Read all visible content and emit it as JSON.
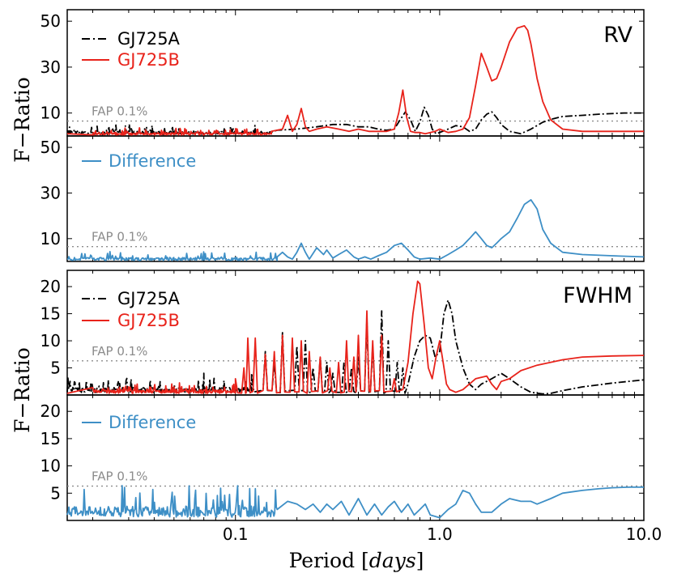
{
  "chart_data": [
    {
      "type": "line",
      "name": "rv-top",
      "tag": "RV",
      "ylim": [
        0,
        55
      ],
      "yticks": [
        10,
        30,
        50
      ],
      "fap": {
        "label": "FAP 0.1%",
        "value": 6.5
      },
      "series": [
        {
          "name": "GJ725A",
          "color": "#000000",
          "dash": "dashdot",
          "noise": {
            "from": 0.015,
            "to": 0.15,
            "amp": 3.5,
            "base": 0.6
          },
          "x": [
            0.015,
            0.03,
            0.05,
            0.08,
            0.12,
            0.16,
            0.2,
            0.25,
            0.3,
            0.35,
            0.4,
            0.45,
            0.5,
            0.55,
            0.6,
            0.64,
            0.68,
            0.72,
            0.76,
            0.8,
            0.84,
            0.88,
            0.92,
            0.96,
            1.0,
            1.1,
            1.2,
            1.3,
            1.4,
            1.5,
            1.6,
            1.7,
            1.8,
            1.9,
            2.0,
            2.2,
            2.5,
            2.8,
            3.2,
            3.6,
            4.0,
            5.0,
            6.0,
            8.0,
            10.0
          ],
          "y": [
            2,
            2,
            2,
            2,
            2,
            2.5,
            3,
            4,
            5,
            5,
            4,
            4,
            3,
            2.5,
            3,
            7,
            10.5,
            7,
            2,
            6,
            12.5,
            9,
            3,
            1,
            1.5,
            3,
            4.5,
            4,
            2,
            3,
            7,
            9.5,
            10.5,
            8,
            5,
            2,
            1,
            3,
            6,
            7.5,
            8.5,
            9,
            9.5,
            10,
            10
          ]
        },
        {
          "name": "GJ725B",
          "color": "#e8231b",
          "dash": "solid",
          "noise": {
            "from": 0.02,
            "to": 0.15,
            "amp": 2.5,
            "base": 0.4
          },
          "x": [
            0.015,
            0.05,
            0.1,
            0.15,
            0.17,
            0.18,
            0.19,
            0.2,
            0.21,
            0.22,
            0.23,
            0.25,
            0.28,
            0.32,
            0.36,
            0.4,
            0.45,
            0.5,
            0.55,
            0.6,
            0.63,
            0.66,
            0.69,
            0.72,
            0.76,
            0.8,
            0.85,
            0.9,
            0.95,
            1.0,
            1.1,
            1.2,
            1.3,
            1.4,
            1.5,
            1.6,
            1.7,
            1.8,
            1.9,
            2.0,
            2.2,
            2.4,
            2.6,
            2.7,
            2.8,
            3.0,
            3.2,
            3.5,
            4.0,
            5.0,
            7.0,
            10.0
          ],
          "y": [
            1,
            1,
            1.5,
            2,
            3,
            9,
            2,
            5,
            12,
            4,
            2,
            3,
            4,
            3,
            2,
            3,
            2,
            2,
            2,
            3,
            10,
            20,
            8,
            2,
            1.5,
            1.5,
            1,
            1.5,
            2,
            3,
            1.5,
            2,
            3,
            8,
            22,
            36,
            30,
            24,
            25,
            30,
            41,
            47,
            48,
            46,
            40,
            25,
            15,
            7,
            3,
            2,
            2,
            2
          ]
        }
      ]
    },
    {
      "type": "line",
      "name": "rv-bottom",
      "ylim": [
        0,
        55
      ],
      "yticks": [
        10,
        30,
        50
      ],
      "fap": {
        "label": "FAP 0.1%",
        "value": 6.5
      },
      "series": [
        {
          "name": "Difference",
          "color": "#3e8fc6",
          "dash": "solid",
          "noise": {
            "from": 0.015,
            "to": 0.16,
            "amp": 3,
            "base": 0.4
          },
          "x": [
            0.015,
            0.05,
            0.1,
            0.15,
            0.16,
            0.17,
            0.18,
            0.19,
            0.2,
            0.21,
            0.22,
            0.23,
            0.25,
            0.27,
            0.28,
            0.3,
            0.32,
            0.35,
            0.38,
            0.4,
            0.43,
            0.46,
            0.5,
            0.55,
            0.6,
            0.65,
            0.7,
            0.75,
            0.8,
            0.9,
            1.0,
            1.1,
            1.2,
            1.3,
            1.4,
            1.5,
            1.6,
            1.7,
            1.8,
            1.9,
            2.0,
            2.2,
            2.4,
            2.6,
            2.8,
            3.0,
            3.2,
            3.5,
            4.0,
            5.0,
            7.0,
            10.0
          ],
          "y": [
            1,
            1,
            1,
            1.5,
            2,
            4,
            2,
            1,
            4,
            8,
            4,
            1,
            6,
            3,
            5,
            1.5,
            3,
            5,
            2,
            1,
            2,
            1,
            2.5,
            4,
            7,
            8,
            5,
            2,
            1,
            1.5,
            1,
            3,
            5,
            7,
            10,
            13,
            10,
            7,
            6,
            8,
            10,
            13,
            19,
            25,
            27,
            23,
            14,
            8,
            4,
            3,
            2.5,
            2
          ]
        }
      ]
    },
    {
      "type": "line",
      "name": "fwhm-top",
      "tag": "FWHM",
      "ylim": [
        0,
        23
      ],
      "yticks": [
        5,
        10,
        15,
        20
      ],
      "fap": {
        "label": "FAP 0.1%",
        "value": 6.3
      },
      "series": [
        {
          "name": "GJ725A",
          "color": "#000000",
          "dash": "dashdot",
          "noise": {
            "from": 0.015,
            "to": 0.12,
            "amp": 2.2,
            "base": 0.4
          },
          "spikes": [
            [
              0.07,
              4
            ],
            [
              0.12,
              4
            ],
            [
              0.14,
              8
            ],
            [
              0.155,
              6
            ],
            [
              0.17,
              11.5
            ],
            [
              0.2,
              9
            ],
            [
              0.22,
              10
            ],
            [
              0.24,
              5
            ],
            [
              0.26,
              7
            ],
            [
              0.28,
              6
            ],
            [
              0.3,
              4
            ],
            [
              0.34,
              6
            ],
            [
              0.37,
              5
            ],
            [
              0.4,
              7
            ],
            [
              0.44,
              14
            ],
            [
              0.47,
              9
            ],
            [
              0.52,
              15.5
            ],
            [
              0.56,
              10
            ],
            [
              0.62,
              6
            ],
            [
              0.66,
              5
            ]
          ],
          "x": [
            0.015,
            0.1,
            0.7,
            0.75,
            0.8,
            0.85,
            0.9,
            0.95,
            1.0,
            1.05,
            1.1,
            1.15,
            1.2,
            1.3,
            1.4,
            1.5,
            1.6,
            1.8,
            2.0,
            2.2,
            2.5,
            2.8,
            3.2,
            3.5,
            4.0,
            5.0,
            7.0,
            10.0
          ],
          "y": [
            0.5,
            0.5,
            2,
            7,
            10,
            11,
            10.5,
            7,
            8,
            15,
            17.5,
            15,
            10,
            5,
            2,
            1,
            2,
            3,
            4,
            3,
            1.5,
            0.5,
            0.2,
            0.3,
            0.8,
            1.5,
            2.2,
            2.8
          ]
        },
        {
          "name": "GJ725B",
          "color": "#e8231b",
          "dash": "solid",
          "noise": {
            "from": 0.02,
            "to": 0.1,
            "amp": 1.5,
            "base": 0.3
          },
          "spikes": [
            [
              0.1,
              3
            ],
            [
              0.11,
              5
            ],
            [
              0.115,
              10.5
            ],
            [
              0.125,
              10.5
            ],
            [
              0.14,
              7.5
            ],
            [
              0.155,
              8
            ],
            [
              0.17,
              11
            ],
            [
              0.19,
              10.5
            ],
            [
              0.21,
              10
            ],
            [
              0.23,
              8
            ],
            [
              0.26,
              7
            ],
            [
              0.29,
              5
            ],
            [
              0.32,
              6
            ],
            [
              0.35,
              10
            ],
            [
              0.38,
              7
            ],
            [
              0.4,
              11
            ],
            [
              0.44,
              15.5
            ],
            [
              0.47,
              10
            ],
            [
              0.52,
              11
            ],
            [
              0.6,
              3
            ]
          ],
          "x": [
            0.015,
            0.09,
            0.66,
            0.7,
            0.74,
            0.78,
            0.8,
            0.84,
            0.88,
            0.92,
            0.96,
            1.0,
            1.04,
            1.08,
            1.12,
            1.2,
            1.3,
            1.5,
            1.7,
            1.8,
            1.9,
            2.0,
            2.2,
            2.5,
            3.0,
            4.0,
            5.0,
            7.0,
            10.0
          ],
          "y": [
            0.3,
            0.3,
            1,
            6,
            15,
            21,
            20.5,
            13,
            5,
            3,
            7,
            10,
            6,
            2,
            1,
            0.5,
            1,
            3,
            3.5,
            2,
            1,
            2.5,
            3,
            4.5,
            5.5,
            6.5,
            7,
            7.2,
            7.3
          ]
        }
      ]
    },
    {
      "type": "line",
      "name": "fwhm-bottom",
      "ylim": [
        0,
        23
      ],
      "yticks": [
        5,
        10,
        15,
        20
      ],
      "fap": {
        "label": "FAP 0.1%",
        "value": 6.3
      },
      "series": [
        {
          "name": "Difference",
          "color": "#3e8fc6",
          "dash": "solid",
          "noise": {
            "from": 0.015,
            "to": 0.16,
            "amp": 4.5,
            "base": 0.6
          },
          "x": [
            0.015,
            0.16,
            0.18,
            0.2,
            0.22,
            0.24,
            0.26,
            0.28,
            0.3,
            0.33,
            0.36,
            0.4,
            0.44,
            0.48,
            0.52,
            0.56,
            0.6,
            0.65,
            0.7,
            0.75,
            0.8,
            0.85,
            0.9,
            1.0,
            1.1,
            1.2,
            1.3,
            1.4,
            1.5,
            1.6,
            1.8,
            2.0,
            2.2,
            2.5,
            2.8,
            3.0,
            3.5,
            4.0,
            5.0,
            6.0,
            7.0,
            8.5,
            10.0
          ],
          "y": [
            1,
            2,
            3.5,
            3,
            2,
            3,
            1.5,
            3,
            2,
            3.5,
            1,
            4,
            1,
            3,
            1,
            2.5,
            3.5,
            1.5,
            3,
            1,
            2,
            3,
            1,
            0.5,
            2,
            3,
            5.5,
            5,
            3,
            1.5,
            1.5,
            3,
            4,
            3.5,
            3.5,
            3,
            4,
            5,
            5.5,
            5.8,
            6,
            6.1,
            6.1
          ]
        }
      ]
    }
  ],
  "legend": {
    "rv": [
      {
        "label": "GJ725A"
      },
      {
        "label": "GJ725B"
      }
    ],
    "rv_diff": [
      {
        "label": "Difference"
      }
    ],
    "fwhm": [
      {
        "label": "GJ725A"
      },
      {
        "label": "GJ725B"
      }
    ],
    "fwhm_diff": [
      {
        "label": "Difference"
      }
    ]
  },
  "axes": {
    "xlabel": "Period [days]",
    "ylabel": "F−Ratio",
    "xlim": [
      0.015,
      10.0
    ],
    "xticks": [
      {
        "value": 0.1,
        "label": "0.1"
      },
      {
        "value": 1.0,
        "label": "1.0"
      },
      {
        "value": 10.0,
        "label": "10.0"
      }
    ]
  },
  "tags": {
    "rv": "RV",
    "fwhm": "FWHM"
  },
  "fap_label": "FAP 0.1%"
}
